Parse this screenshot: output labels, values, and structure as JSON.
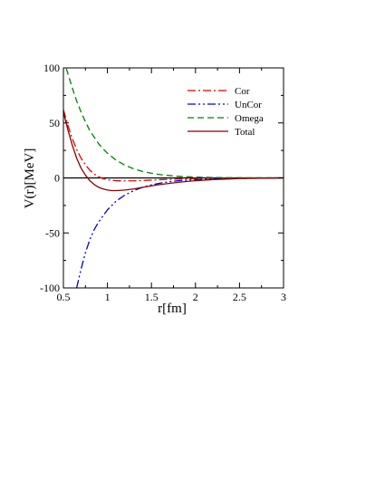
{
  "chart_data": {
    "type": "line",
    "title": "",
    "xlabel": "r[fm]",
    "ylabel": "V(r)[MeV]",
    "xlim": [
      0.5,
      3
    ],
    "ylim": [
      -100,
      100
    ],
    "grid": false,
    "legend_position": "top-right",
    "x_ticks": [
      "0.5",
      "1",
      "1.5",
      "2",
      "2.5",
      "3"
    ],
    "y_ticks": [
      "100",
      "50",
      "0",
      "-50",
      "-100"
    ],
    "zero_line": true,
    "series": [
      {
        "name": "Cor",
        "color": "#e00000",
        "dash": "dash-dot",
        "x": [
          0.5,
          0.55,
          0.6,
          0.65,
          0.7,
          0.75,
          0.8,
          0.85,
          0.9,
          0.95,
          1.0,
          1.05,
          1.1,
          1.2,
          1.3,
          1.4,
          1.5,
          1.6,
          1.8,
          2.0,
          2.5,
          3.0
        ],
        "y": [
          62,
          48,
          36,
          26,
          18,
          12,
          7,
          3.5,
          1,
          -0.6,
          -1.6,
          -2.2,
          -2.5,
          -2.7,
          -2.6,
          -2.3,
          -2.0,
          -1.6,
          -1.0,
          -0.6,
          -0.2,
          0
        ]
      },
      {
        "name": "UnCor",
        "color": "#0000e0",
        "dash": "dash-dot-dot",
        "x": [
          0.65,
          0.7,
          0.75,
          0.8,
          0.85,
          0.9,
          1.0,
          1.1,
          1.2,
          1.3,
          1.4,
          1.5,
          1.6,
          1.7,
          1.8,
          2.0,
          2.2,
          2.5,
          3.0
        ],
        "y": [
          -100,
          -83,
          -68,
          -56,
          -47,
          -40,
          -29,
          -21,
          -15.5,
          -11.5,
          -8.5,
          -6.3,
          -4.7,
          -3.5,
          -2.6,
          -1.5,
          -0.8,
          -0.3,
          0
        ]
      },
      {
        "name": "Omega",
        "color": "#008000",
        "dash": "dashed",
        "x": [
          0.5,
          0.55,
          0.6,
          0.65,
          0.7,
          0.75,
          0.8,
          0.85,
          0.9,
          0.95,
          1.0,
          1.1,
          1.2,
          1.3,
          1.4,
          1.5,
          1.6,
          1.8,
          2.0,
          2.2,
          2.5,
          3.0
        ],
        "y": [
          108,
          95,
          82,
          70,
          60,
          51,
          43,
          37,
          31,
          26.5,
          22.5,
          16,
          11.5,
          8.2,
          5.9,
          4.2,
          3.0,
          1.5,
          0.8,
          0.4,
          0.15,
          0
        ]
      },
      {
        "name": "Total",
        "color": "#8b0000",
        "dash": "solid",
        "x": [
          0.5,
          0.55,
          0.6,
          0.65,
          0.7,
          0.75,
          0.8,
          0.85,
          0.9,
          0.95,
          1.0,
          1.05,
          1.1,
          1.2,
          1.3,
          1.4,
          1.5,
          1.6,
          1.8,
          2.0,
          2.2,
          2.5,
          3.0
        ],
        "y": [
          60,
          44,
          30,
          18,
          9,
          2.5,
          -2.5,
          -6,
          -8.5,
          -10,
          -11,
          -11.5,
          -11.5,
          -11,
          -10,
          -8.5,
          -7.2,
          -6,
          -4,
          -2.5,
          -1.5,
          -0.6,
          0
        ]
      }
    ]
  }
}
